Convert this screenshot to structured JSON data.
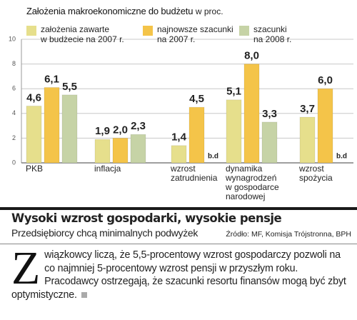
{
  "chart_data": {
    "type": "bar",
    "title": "Założenia makroekonomiczne do budżetu",
    "unit": "w proc.",
    "categories": [
      "PKB",
      "inflacja",
      "wzrost\nzatrudnienia",
      "dynamika\nwynagrodzeń\nw gospodarce\nnarodowej",
      "wzrost\nspożycia"
    ],
    "series": [
      {
        "name": "założenia zawarte\nw budżecie na 2007 r.",
        "color": "#e6df8c",
        "values": [
          4.6,
          1.9,
          1.4,
          5.1,
          3.7
        ],
        "value_labels": [
          "4,6",
          "1,9",
          "1,4",
          "5,1",
          "3,7"
        ]
      },
      {
        "name": "najnowsze szacunki\nna 2007 r.",
        "color": "#f4c449",
        "values": [
          6.1,
          2.0,
          4.5,
          8.0,
          6.0
        ],
        "value_labels": [
          "6,1",
          "2,0",
          "4,5",
          "8,0",
          "6,0"
        ]
      },
      {
        "name": "szacunki\nna 2008 r.",
        "color": "#c6d3a6",
        "values": [
          5.5,
          2.3,
          null,
          3.3,
          null
        ],
        "value_labels": [
          "5,5",
          "2,3",
          "b.d",
          "3,3",
          "b.d"
        ]
      }
    ],
    "ylim": [
      0,
      10
    ],
    "yticks": [
      0,
      2,
      4,
      6,
      8,
      10
    ],
    "grid": true
  },
  "article": {
    "headline": "Wysoki wzrost gospodarki, wysokie pensje",
    "subheadline": "Przedsiębiorcy chcą minimalnych podwyżek",
    "source": "Źródło: MF, Komisja Trójstronna, BPH",
    "body": "Związkowcy liczą, że 5,5-procentowy wzrost gospodarczy pozwoli na co najmniej 5-procentowy wzrost pensji w przyszłym roku. Pracodawcy ostrzegają, że szacunki resortu finansów mogą być zbyt optymistyczne."
  }
}
